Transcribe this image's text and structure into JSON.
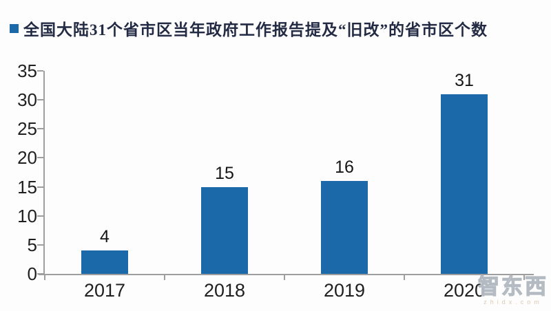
{
  "chart_data": {
    "type": "bar",
    "title": "全国大陆31个省市区当年政府工作报告提及“旧改”的省市区个数",
    "legend_position": "top-left",
    "categories": [
      "2017",
      "2018",
      "2019",
      "2020"
    ],
    "values": [
      4,
      15,
      16,
      31
    ],
    "data_labels": [
      "4",
      "15",
      "16",
      "31"
    ],
    "yticks": [
      0,
      5,
      10,
      15,
      20,
      25,
      30,
      35
    ],
    "ylim": [
      0,
      35
    ],
    "xlabel": "",
    "ylabel": "",
    "grid": "off",
    "bar_color": "#1b69a8",
    "axis_color": "#9e9e9e"
  },
  "watermark": {
    "text": "智东西",
    "domain": "zhidx.com"
  }
}
